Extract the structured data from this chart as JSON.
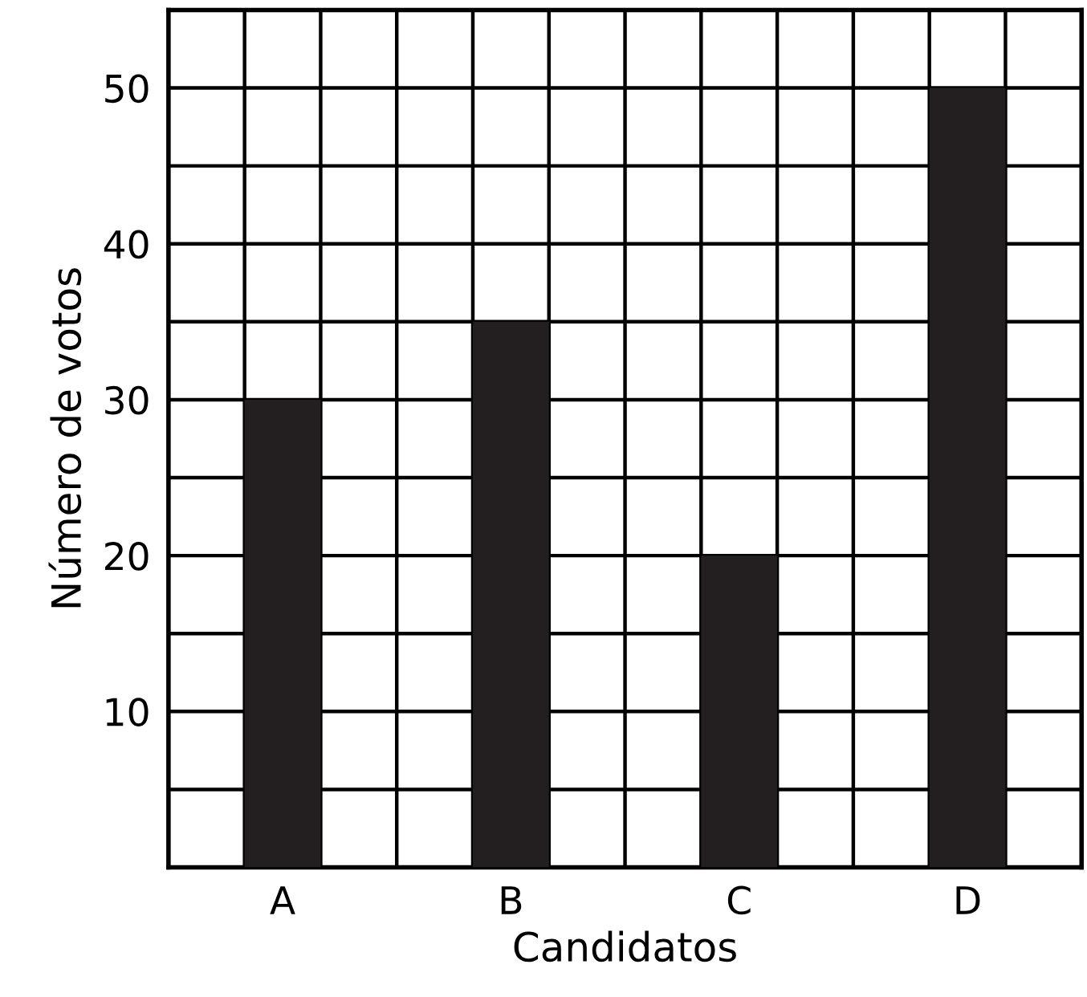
{
  "chart_data": {
    "type": "bar",
    "xlabel": "Candidatos",
    "ylabel": "Número de votos",
    "categories": [
      "A",
      "B",
      "C",
      "D"
    ],
    "values": [
      30,
      35,
      20,
      50
    ],
    "color": "#231f20",
    "ylim": [
      0,
      55
    ],
    "yticks": [
      {
        "value": 5,
        "label": null
      },
      10,
      {
        "value": 15,
        "label": null
      },
      20,
      {
        "value": 25,
        "label": null
      },
      30,
      {
        "value": 35,
        "label": null
      },
      40,
      {
        "value": 45,
        "label": null
      },
      50
    ],
    "grid": true
  }
}
